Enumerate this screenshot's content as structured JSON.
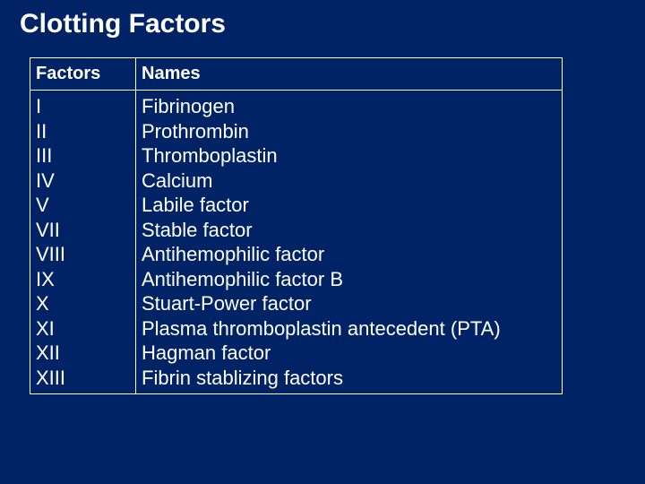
{
  "colors": {
    "background": "#002366",
    "text": "#ffffff",
    "border": "#ffffff"
  },
  "title": "Clotting Factors",
  "table": {
    "headers": {
      "factors": "Factors",
      "names": "Names"
    },
    "factors_cell": "I\nII\nIII\nIV\nV\nVII\nVIII\nIX\nX\nXI\nXII\nXIII",
    "names_cell": "Fibrinogen\nProthrombin\nThromboplastin\nCalcium\nLabile factor\nStable factor\nAntihemophilic factor\nAntihemophilic factor B\nStuart-Power factor\nPlasma thromboplastin antecedent (PTA)\nHagman factor\nFibrin stablizing factors"
  }
}
